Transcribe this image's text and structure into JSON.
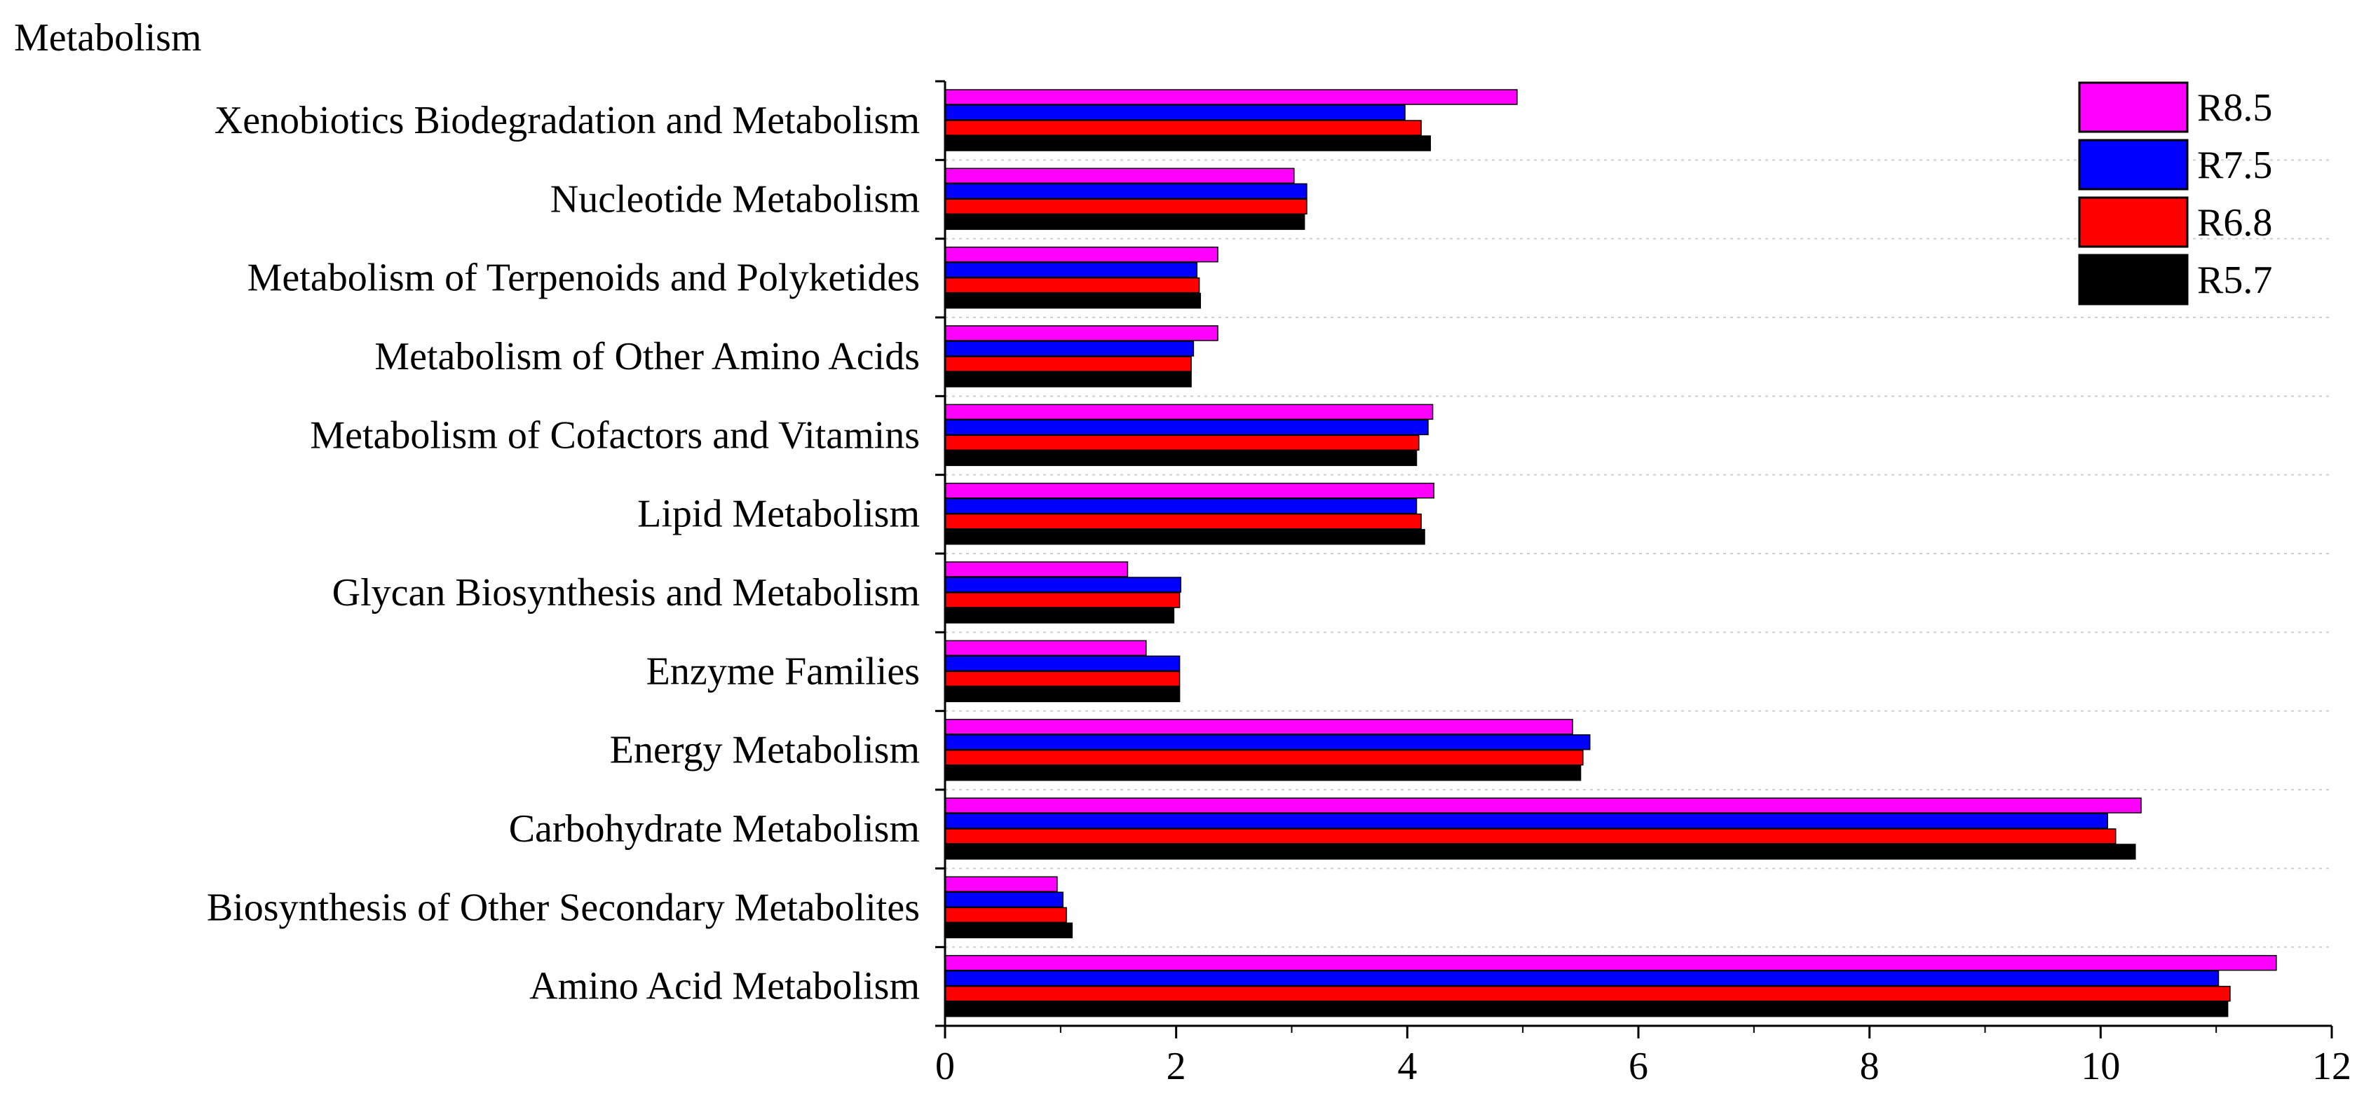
{
  "chart_data": {
    "type": "bar",
    "orientation": "horizontal",
    "title": "Metabolism",
    "xlabel": "",
    "ylabel": "",
    "xlim": [
      0,
      12
    ],
    "xticks": [
      0,
      2,
      4,
      6,
      8,
      10,
      12
    ],
    "grid": "horizontal dotted",
    "legend_position": "top-right",
    "categories": [
      "Xenobiotics Biodegradation and Metabolism",
      "Nucleotide Metabolism",
      "Metabolism of Terpenoids and Polyketides",
      "Metabolism of Other Amino Acids",
      "Metabolism of Cofactors and Vitamins",
      "Lipid Metabolism",
      "Glycan Biosynthesis and Metabolism",
      "Enzyme Families",
      "Energy Metabolism",
      "Carbohydrate Metabolism",
      "Biosynthesis of Other Secondary Metabolites",
      "Amino Acid Metabolism"
    ],
    "series": [
      {
        "name": "R8.5",
        "color": "#ff00ff",
        "values": [
          4.95,
          3.02,
          2.36,
          2.36,
          4.22,
          4.23,
          1.58,
          1.74,
          5.43,
          10.35,
          0.97,
          11.52
        ]
      },
      {
        "name": "R7.5",
        "color": "#0000ff",
        "values": [
          3.98,
          3.13,
          2.18,
          2.15,
          4.18,
          4.08,
          2.04,
          2.03,
          5.58,
          10.06,
          1.02,
          11.02
        ]
      },
      {
        "name": "R6.8",
        "color": "#ff0000",
        "values": [
          4.12,
          3.13,
          2.2,
          2.13,
          4.1,
          4.12,
          2.03,
          2.03,
          5.52,
          10.13,
          1.05,
          11.12
        ]
      },
      {
        "name": "R5.7",
        "color": "#000000",
        "values": [
          4.2,
          3.11,
          2.21,
          2.13,
          4.08,
          4.15,
          1.98,
          2.03,
          5.5,
          10.3,
          1.1,
          11.1
        ]
      }
    ]
  }
}
